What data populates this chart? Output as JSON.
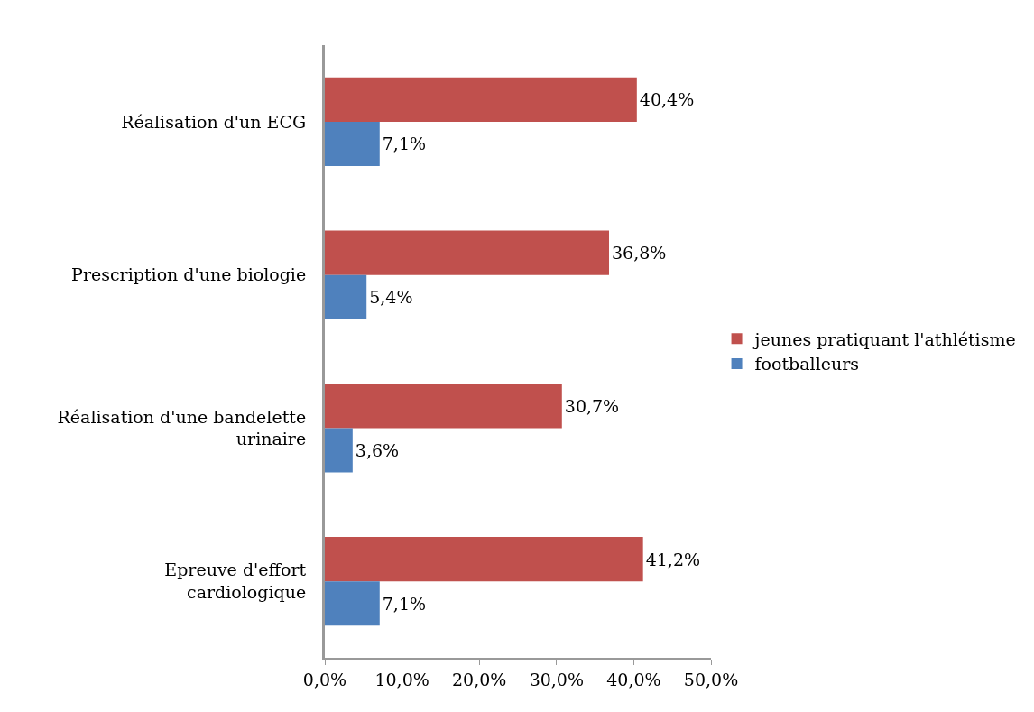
{
  "chart_data": {
    "type": "bar",
    "orientation": "horizontal",
    "categories": [
      "Réalisation d'un ECG",
      "Prescription d'une biologie",
      "Réalisation d'une bandelette urinaire",
      "Epreuve d'effort cardiologique"
    ],
    "series": [
      {
        "name": "jeunes pratiquant l'athlétisme",
        "color": "#c0504d",
        "values": [
          40.4,
          36.8,
          30.7,
          41.2
        ],
        "value_labels": [
          "40,4%",
          "36,8%",
          "30,7%",
          "41,2%"
        ]
      },
      {
        "name": "footballeurs",
        "color": "#4f81bd",
        "values": [
          7.1,
          5.4,
          3.6,
          7.1
        ],
        "value_labels": [
          "7,1%",
          "5,4%",
          "3,6%",
          "7,1%"
        ]
      }
    ],
    "xlim": [
      0,
      50
    ],
    "xticks": [
      {
        "value": 0,
        "label": "0,0%"
      },
      {
        "value": 10,
        "label": "10,0%"
      },
      {
        "value": 20,
        "label": "20,0%"
      },
      {
        "value": 30,
        "label": "30,0%"
      },
      {
        "value": 40,
        "label": "40,0%"
      },
      {
        "value": 50,
        "label": "50,0%"
      }
    ],
    "legend": "right",
    "grid": false
  }
}
